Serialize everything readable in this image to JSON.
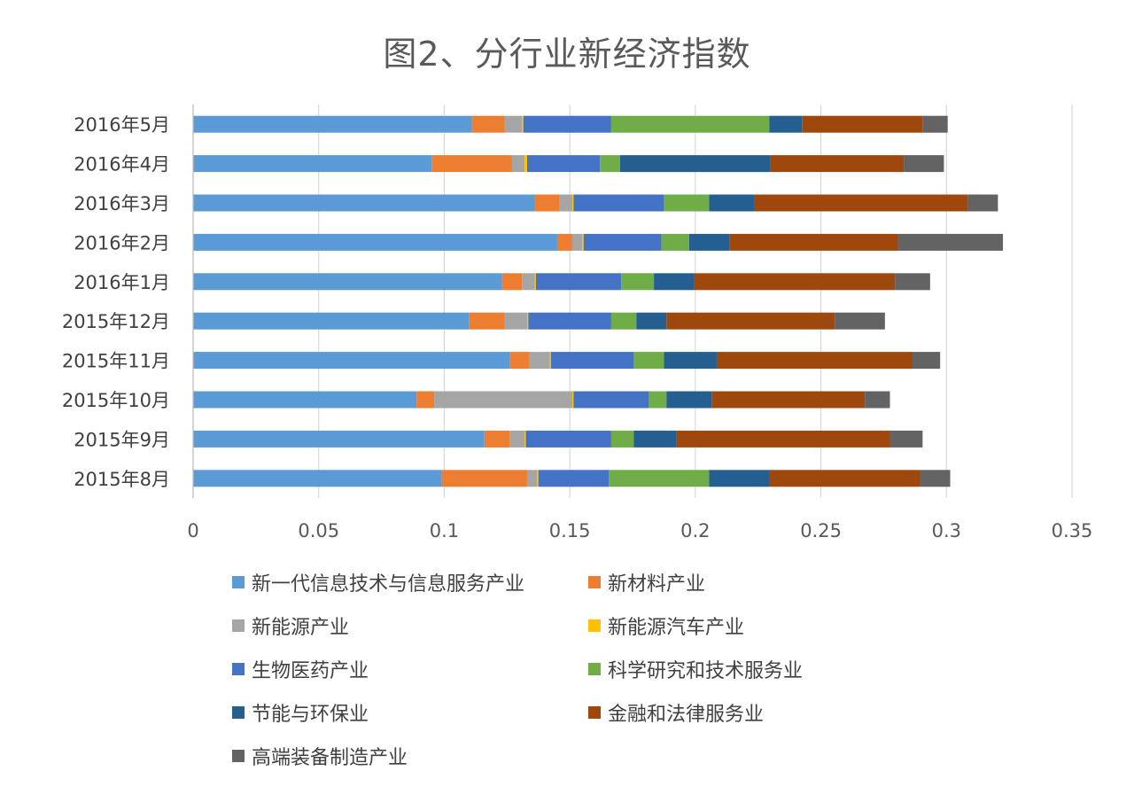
{
  "chart_data": {
    "type": "bar",
    "orientation": "horizontal",
    "stacked": true,
    "title": "图2、分行业新经济指数",
    "categories": [
      "2016年5月",
      "2016年4月",
      "2016年3月",
      "2016年2月",
      "2016年1月",
      "2015年12月",
      "2015年11月",
      "2015年10月",
      "2015年9月",
      "2015年8月"
    ],
    "xlim": [
      0,
      0.35
    ],
    "x_ticks": [
      "0",
      "0.05",
      "0.1",
      "0.15",
      "0.2",
      "0.25",
      "0.3",
      "0.35"
    ],
    "grid": "vertical",
    "legend_position": "bottom",
    "series": [
      {
        "name": "新一代信息技术与信息服务产业",
        "color": "#5B9BD5",
        "values": [
          0.111,
          0.095,
          0.136,
          0.145,
          0.123,
          0.11,
          0.126,
          0.089,
          0.116,
          0.099
        ]
      },
      {
        "name": "新材料产业",
        "color": "#ED7D31",
        "values": [
          0.013,
          0.032,
          0.01,
          0.006,
          0.008,
          0.014,
          0.008,
          0.007,
          0.01,
          0.034
        ]
      },
      {
        "name": "新能源产业",
        "color": "#A5A5A5",
        "values": [
          0.007,
          0.005,
          0.005,
          0.004,
          0.005,
          0.009,
          0.008,
          0.055,
          0.006,
          0.004
        ]
      },
      {
        "name": "新能源汽车产业",
        "color": "#FFC000",
        "values": [
          0.0005,
          0.001,
          0.0005,
          0.0005,
          0.0005,
          0.0005,
          0.0005,
          0.0005,
          0.0005,
          0.0005
        ]
      },
      {
        "name": "生物医药产业",
        "color": "#4472C4",
        "values": [
          0.035,
          0.029,
          0.036,
          0.031,
          0.034,
          0.033,
          0.033,
          0.03,
          0.034,
          0.028
        ]
      },
      {
        "name": "科学研究和技术服务业",
        "color": "#70AD47",
        "values": [
          0.063,
          0.008,
          0.018,
          0.011,
          0.013,
          0.01,
          0.012,
          0.007,
          0.009,
          0.04
        ]
      },
      {
        "name": "节能与环保业",
        "color": "#255E91",
        "values": [
          0.013,
          0.06,
          0.018,
          0.016,
          0.016,
          0.012,
          0.021,
          0.018,
          0.017,
          0.024
        ]
      },
      {
        "name": "金融和法律服务业",
        "color": "#9E480E",
        "values": [
          0.048,
          0.053,
          0.085,
          0.067,
          0.08,
          0.067,
          0.078,
          0.061,
          0.085,
          0.06
        ]
      },
      {
        "name": "高端装备制造产业",
        "color": "#636363",
        "values": [
          0.01,
          0.016,
          0.012,
          0.042,
          0.014,
          0.02,
          0.011,
          0.01,
          0.013,
          0.012
        ]
      }
    ]
  }
}
